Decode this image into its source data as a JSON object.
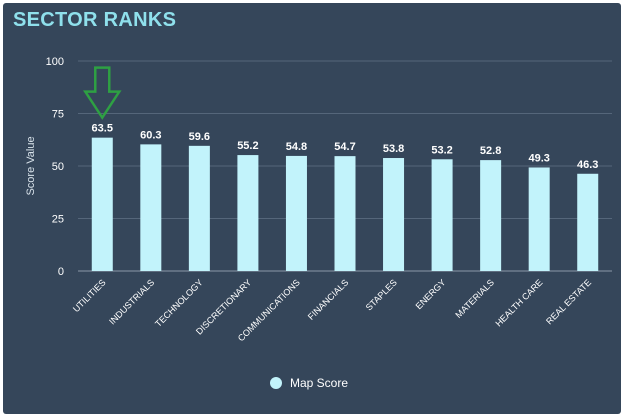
{
  "title": "SECTOR RANKS",
  "colors": {
    "background": "#35465a",
    "bar": "#c2f3fb",
    "title": "#8fe0ec",
    "arrow": "#2ea043",
    "text": "#ffffff",
    "grid": "#55667a"
  },
  "chart_data": {
    "type": "bar",
    "title": "",
    "xlabel": "",
    "ylabel": "Score Value",
    "ylim": [
      0,
      100
    ],
    "yticks": [
      0,
      25,
      50,
      75,
      100
    ],
    "grid": true,
    "legend_position": "bottom",
    "categories": [
      "UTILITIES",
      "INDUSTRIALS",
      "TECHNOLOGY",
      "DISCRETIONARY",
      "COMMUNICATIONS",
      "FINANCIALS",
      "STAPLES",
      "ENERGY",
      "MATERIALS",
      "HEALTH CARE",
      "REAL ESTATE"
    ],
    "series": [
      {
        "name": "Map Score",
        "values": [
          63.5,
          60.3,
          59.6,
          55.2,
          54.8,
          54.7,
          53.8,
          53.2,
          52.8,
          49.3,
          46.3
        ]
      }
    ],
    "data_labels": [
      "63.5",
      "60.3",
      "59.6",
      "55.2",
      "54.8",
      "54.7",
      "53.8",
      "53.2",
      "52.8",
      "49.3",
      "46.3"
    ],
    "annotations": [
      {
        "type": "arrow",
        "target_category": "UTILITIES",
        "direction": "down"
      }
    ]
  }
}
